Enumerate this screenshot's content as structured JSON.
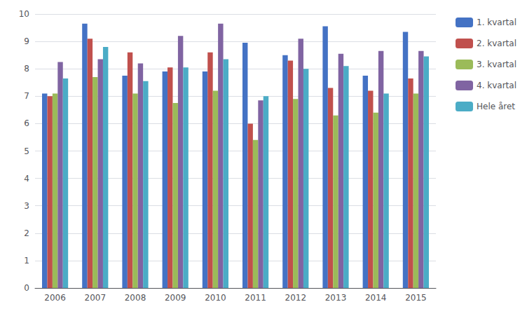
{
  "chart_data": {
    "type": "bar",
    "categories": [
      "2006",
      "2007",
      "2008",
      "2009",
      "2010",
      "2011",
      "2012",
      "2013",
      "2014",
      "2015"
    ],
    "series": [
      {
        "name": "1. kvartal",
        "color": "#4472C4",
        "values": [
          7.1,
          9.65,
          7.75,
          7.9,
          7.9,
          8.95,
          8.5,
          9.55,
          7.75,
          9.35
        ]
      },
      {
        "name": "2. kvartal",
        "color": "#C0504D",
        "values": [
          7.0,
          9.1,
          8.6,
          8.05,
          8.6,
          6.0,
          8.3,
          7.3,
          7.2,
          7.65
        ]
      },
      {
        "name": "3. kvartal",
        "color": "#9BBB59",
        "values": [
          7.1,
          7.7,
          7.1,
          6.75,
          7.2,
          5.4,
          6.9,
          6.3,
          6.4,
          7.1
        ]
      },
      {
        "name": "4. kvartal",
        "color": "#8064A2",
        "values": [
          8.25,
          8.35,
          8.2,
          9.2,
          9.65,
          6.85,
          9.1,
          8.55,
          8.65,
          8.65
        ]
      },
      {
        "name": "Hele året",
        "color": "#4BACC6",
        "values": [
          7.65,
          8.8,
          7.55,
          8.05,
          8.35,
          7.0,
          8.0,
          8.1,
          7.1,
          8.45
        ]
      }
    ],
    "ylim": [
      0,
      10
    ],
    "yticks": [
      0,
      1,
      2,
      3,
      4,
      5,
      6,
      7,
      8,
      9,
      10
    ],
    "grid": true,
    "legend": "upper right"
  }
}
